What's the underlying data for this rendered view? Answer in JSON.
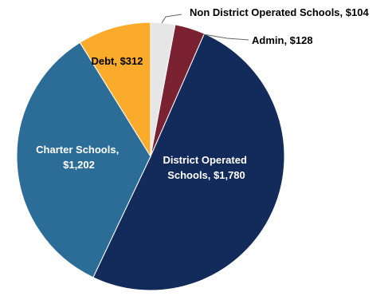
{
  "chart_data": {
    "type": "pie",
    "title": "",
    "slices": [
      {
        "label": "Non District Operated Schools",
        "value": 104,
        "display": "Non District Operated Schools, $104",
        "color": "#e6e6e6",
        "text_color": "#000000"
      },
      {
        "label": "Admin",
        "value": 128,
        "display": "Admin, $128",
        "color": "#7b2232",
        "text_color": "#000000"
      },
      {
        "label": "District Operated Schools",
        "value": 1780,
        "display_lines": [
          "District Operated",
          "Schools, $1,780"
        ],
        "color": "#122b5a",
        "text_color": "#ffffff"
      },
      {
        "label": "Charter Schools",
        "value": 1202,
        "display_lines": [
          "Charter Schools,",
          "$1,202"
        ],
        "color": "#2b6d96",
        "text_color": "#ffffff"
      },
      {
        "label": "Debt",
        "value": 312,
        "display": "Debt, $312",
        "color": "#fbab2c",
        "text_color": "#000000"
      }
    ]
  }
}
